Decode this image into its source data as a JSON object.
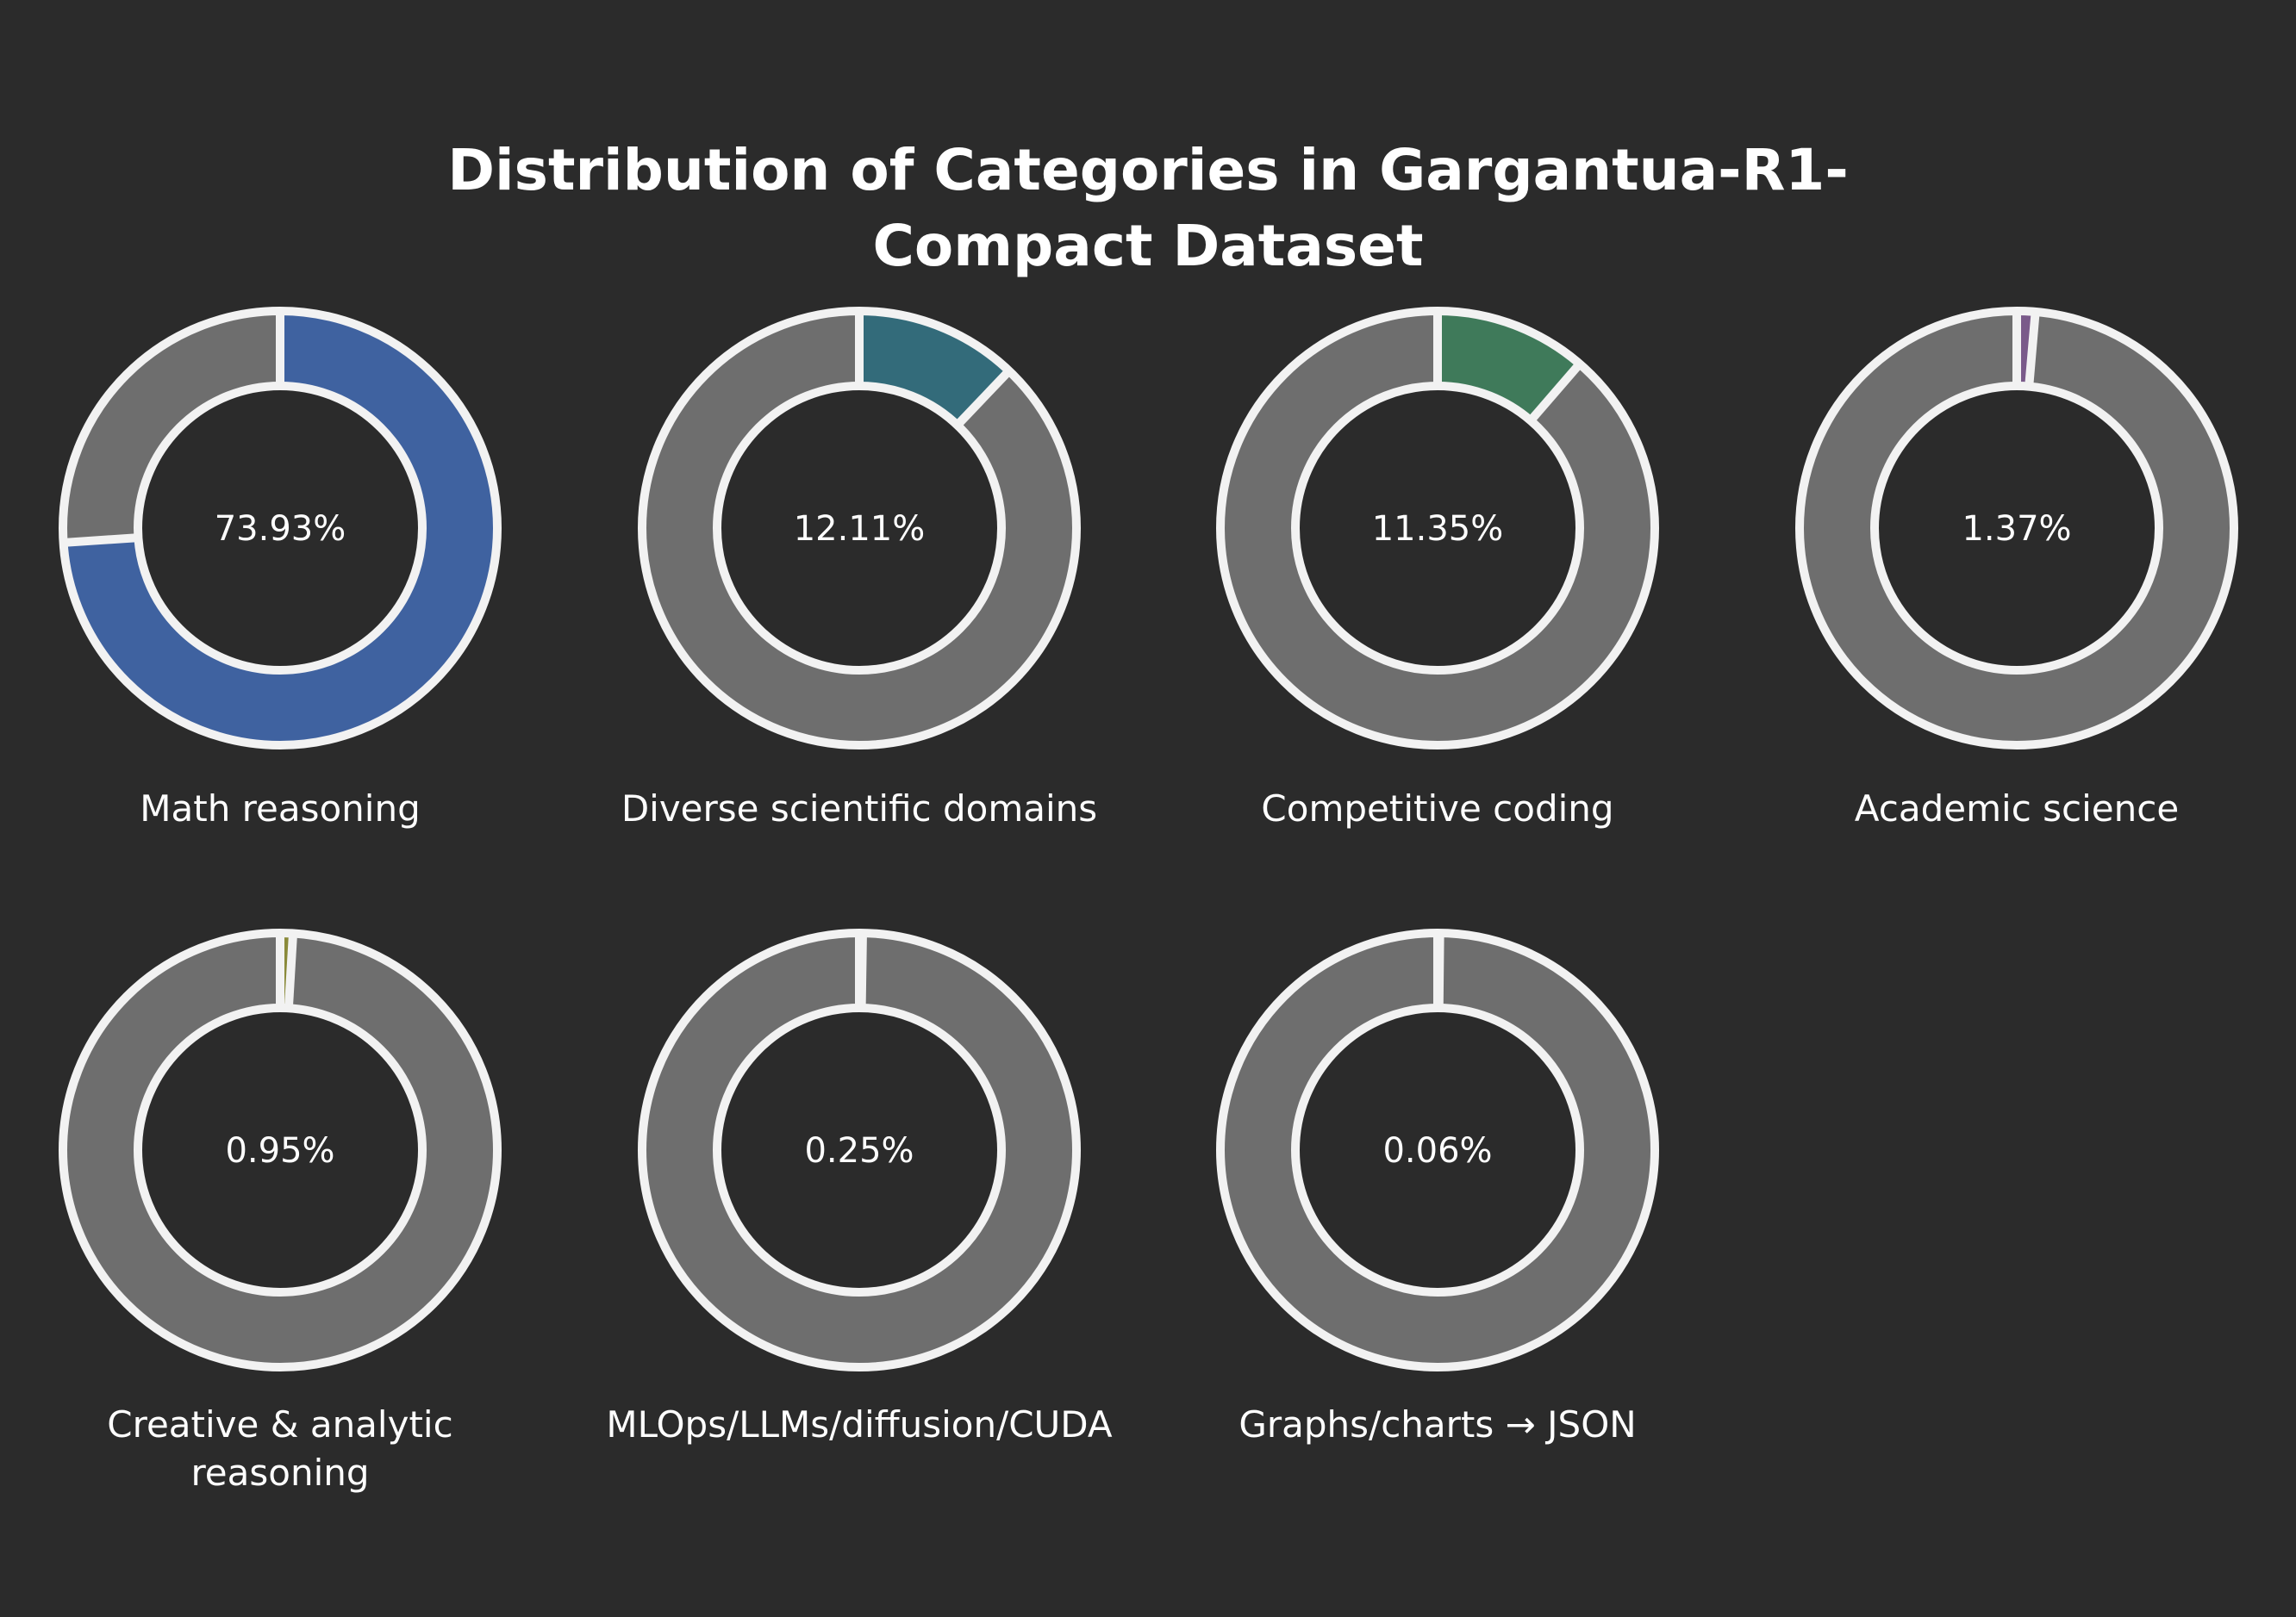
{
  "chart_data": {
    "type": "pie",
    "title_lines": [
      "Distribution of Categories in Gargantua-R1-",
      "Compact Dataset"
    ],
    "style": "donut",
    "remainder_color": "#6e6e6e",
    "outline_color": "#f2f2f2",
    "background": "#2b2b2b",
    "categories": [
      {
        "label_lines": [
          "Math reasoning"
        ],
        "value": 73.93,
        "value_label": "73.93%",
        "color": "#3f62a0"
      },
      {
        "label_lines": [
          "Diverse scientific domains"
        ],
        "value": 12.11,
        "value_label": "12.11%",
        "color": "#336b7a"
      },
      {
        "label_lines": [
          "Competitive coding"
        ],
        "value": 11.35,
        "value_label": "11.35%",
        "color": "#3f7a5a"
      },
      {
        "label_lines": [
          "Academic science"
        ],
        "value": 1.37,
        "value_label": "1.37%",
        "color": "#7a5a8a"
      },
      {
        "label_lines": [
          "Creative & analytic",
          "reasoning"
        ],
        "value": 0.95,
        "value_label": "0.95%",
        "color": "#8a8a3a"
      },
      {
        "label_lines": [
          "MLOps/LLMs/diffusion/CUDA"
        ],
        "value": 0.25,
        "value_label": "0.25%",
        "color": "#9a6434"
      },
      {
        "label_lines": [
          "Graphs/charts → JSON"
        ],
        "value": 0.06,
        "value_label": "0.06%",
        "color": "#a8403e"
      }
    ]
  }
}
